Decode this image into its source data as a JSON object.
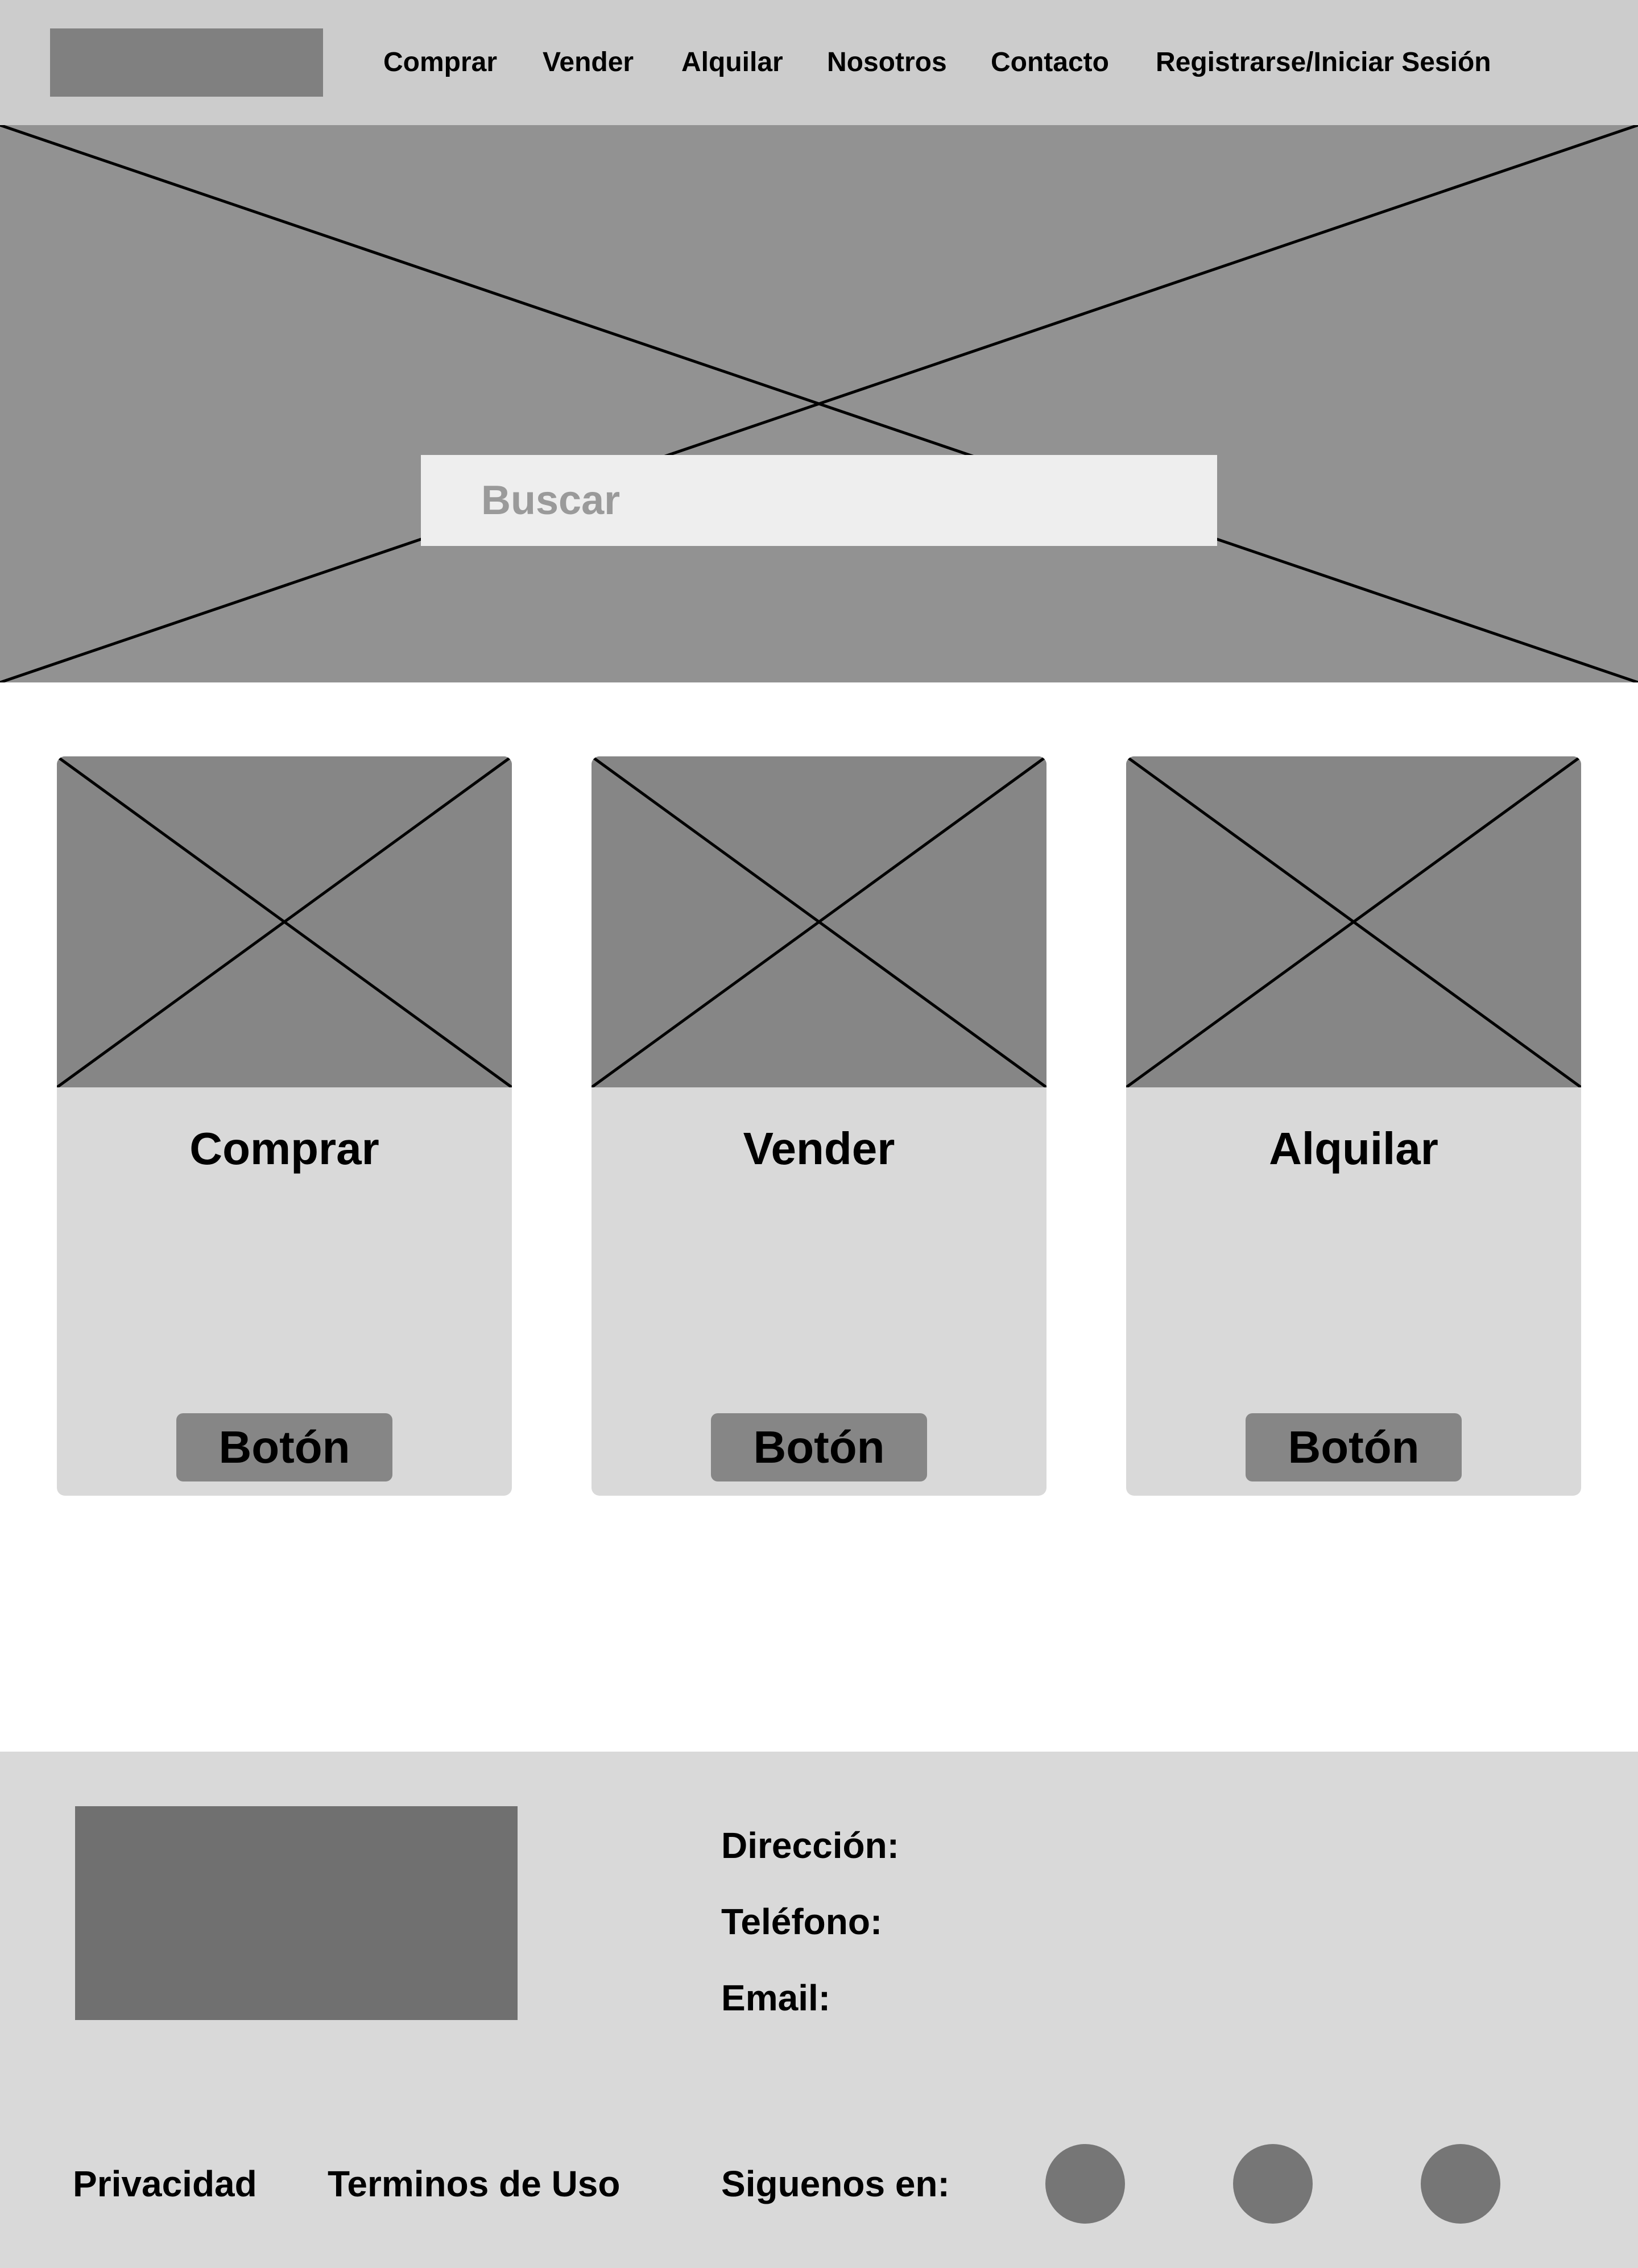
{
  "header": {
    "nav": [
      "Comprar",
      "Vender",
      "Alquilar",
      "Nosotros",
      "Contacto",
      "Registrarse/Iniciar Sesión"
    ]
  },
  "hero": {
    "search_placeholder": "Buscar"
  },
  "cards": [
    {
      "title": "Comprar",
      "button": "Botón"
    },
    {
      "title": "Vender",
      "button": "Botón"
    },
    {
      "title": "Alquilar",
      "button": "Botón"
    }
  ],
  "footer": {
    "address_label": "Dirección:",
    "phone_label": "Teléfono:",
    "email_label": "Email:",
    "privacy": "Privacidad",
    "terms": "Terminos de Uso",
    "follow": "Siguenos en:",
    "social_icons": [
      "social-icon-1",
      "social-icon-2",
      "social-icon-3"
    ]
  },
  "colors": {
    "header_bg": "#cccccc",
    "hero_bg": "#929292",
    "placeholder_image": "#868686",
    "card_bg": "#d9d9d9",
    "footer_bg": "#d9d9d9"
  }
}
